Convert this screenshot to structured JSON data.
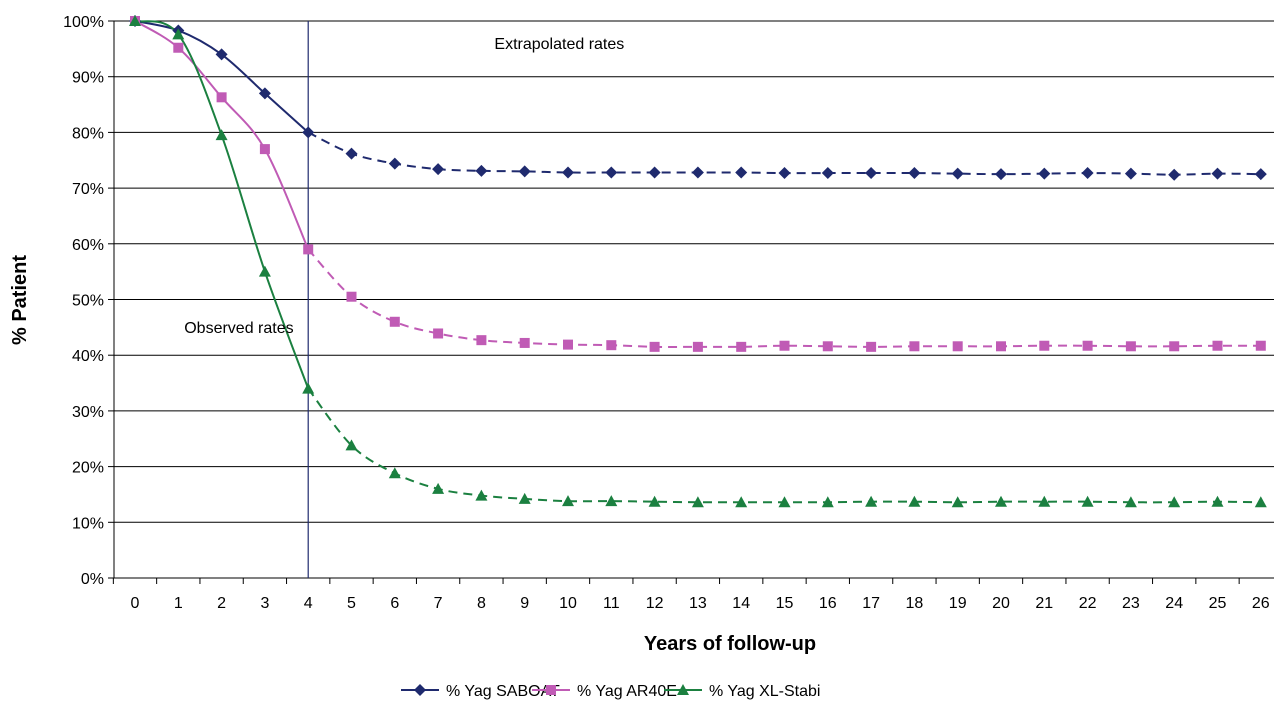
{
  "chart_data": {
    "type": "line",
    "title": "",
    "xlabel": "Years of follow-up",
    "ylabel": "% Patient",
    "x": [
      0,
      1,
      2,
      3,
      4,
      5,
      6,
      7,
      8,
      9,
      10,
      11,
      12,
      13,
      14,
      15,
      16,
      17,
      18,
      19,
      20,
      21,
      22,
      23,
      24,
      25,
      26
    ],
    "x_tick_labels": [
      "0",
      "1",
      "2",
      "3",
      "4",
      "5",
      "6",
      "7",
      "8",
      "9",
      "10",
      "11",
      "12",
      "13",
      "14",
      "15",
      "16",
      "17",
      "18",
      "19",
      "20",
      "21",
      "22",
      "23",
      "24",
      "25",
      "26"
    ],
    "y_tick_labels": [
      "0%",
      "10%",
      "20%",
      "30%",
      "40%",
      "50%",
      "60%",
      "70%",
      "80%",
      "90%",
      "100%"
    ],
    "ylim": [
      0,
      100
    ],
    "y_unit": "%",
    "grid": "horizontal",
    "legend_position": "bottom",
    "observed_until_x": 4,
    "annotations": [
      {
        "text": "Extrapolated rates",
        "x": 9.8,
        "y": 95
      },
      {
        "text": "Observed rates",
        "x": 2.4,
        "y": 44
      }
    ],
    "series": [
      {
        "name": "% Yag SABOAT",
        "color": "#1f2a6e",
        "marker": "diamond",
        "values": [
          100,
          98.3,
          94,
          87,
          80,
          76.2,
          74.4,
          73.4,
          73.1,
          73,
          72.8,
          72.8,
          72.8,
          72.8,
          72.8,
          72.7,
          72.7,
          72.7,
          72.7,
          72.6,
          72.5,
          72.6,
          72.7,
          72.6,
          72.4,
          72.6,
          72.5
        ]
      },
      {
        "name": "% Yag AR40E",
        "color": "#c05bb5",
        "marker": "square",
        "values": [
          100,
          95.2,
          86.3,
          77,
          59,
          50.5,
          46,
          43.9,
          42.7,
          42.2,
          41.9,
          41.8,
          41.5,
          41.5,
          41.5,
          41.7,
          41.6,
          41.5,
          41.6,
          41.6,
          41.6,
          41.7,
          41.7,
          41.6,
          41.6,
          41.7,
          41.7
        ]
      },
      {
        "name": "% Yag XL-Stabi",
        "color": "#1b8040",
        "marker": "triangle",
        "values": [
          100,
          97.6,
          79.5,
          55,
          34,
          23.8,
          18.8,
          16,
          14.8,
          14.2,
          13.8,
          13.8,
          13.7,
          13.6,
          13.6,
          13.6,
          13.6,
          13.7,
          13.7,
          13.6,
          13.7,
          13.7,
          13.7,
          13.6,
          13.6,
          13.7,
          13.6
        ]
      }
    ]
  }
}
